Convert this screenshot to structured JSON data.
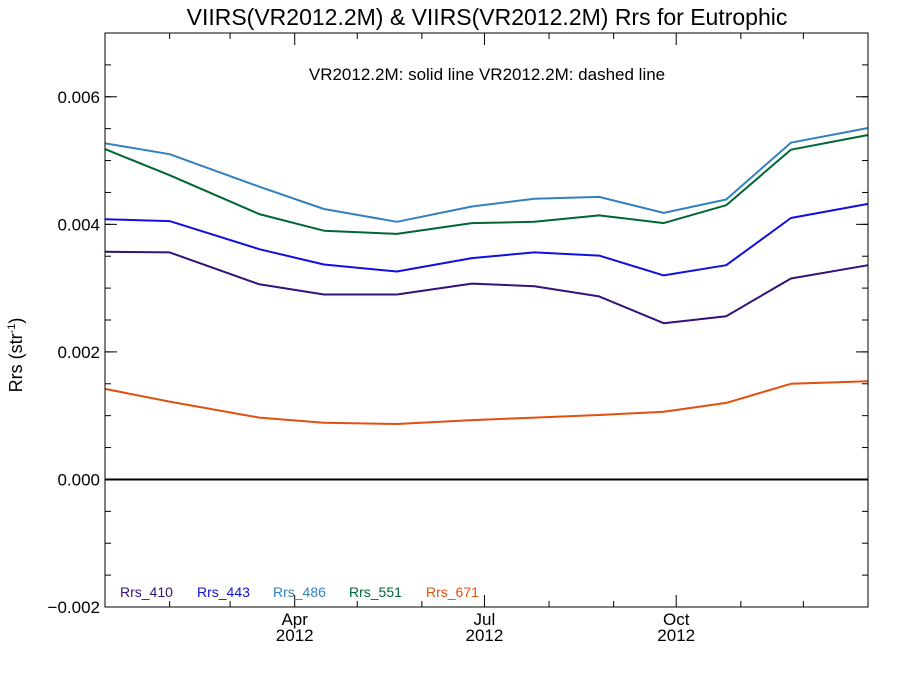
{
  "chart_data": {
    "type": "line",
    "title": "VIIRS(VR2012.2M) & VIIRS(VR2012.2M)  Rrs for Eutrophic",
    "annotation": "VR2012.2M: solid line   VR2012.2M: dashed line",
    "ylabel": {
      "main": "Rrs (str",
      "sup": "-1",
      "close": ")"
    },
    "xlabel": "",
    "ylim": [
      -0.002,
      0.007
    ],
    "yticks": [
      {
        "value": -0.002,
        "label": "−0.002"
      },
      {
        "value": 0.0,
        "label": "0.000"
      },
      {
        "value": 0.002,
        "label": "0.002"
      },
      {
        "value": 0.004,
        "label": "0.004"
      },
      {
        "value": 0.006,
        "label": "0.006"
      }
    ],
    "yminor_step": 0.0005,
    "xlim": [
      "2012-01-01",
      "2013-01-01"
    ],
    "xticks": [
      {
        "date": "2012-04-01",
        "month": "Apr",
        "year": "2012"
      },
      {
        "date": "2012-07-01",
        "month": "Jul",
        "year": "2012"
      },
      {
        "date": "2012-10-01",
        "month": "Oct",
        "year": "2012"
      }
    ],
    "xminor_dates": [
      "2012-02-01",
      "2012-03-01",
      "2012-05-01",
      "2012-06-01",
      "2012-08-01",
      "2012-09-01",
      "2012-11-01",
      "2012-12-01"
    ],
    "zero_line": 0.0,
    "x": [
      "2012-01-01",
      "2012-02-01",
      "2012-03-15",
      "2012-04-15",
      "2012-05-20",
      "2012-06-25",
      "2012-07-25",
      "2012-08-25",
      "2012-09-25",
      "2012-10-25",
      "2012-11-25",
      "2013-01-01"
    ],
    "series": [
      {
        "name": "Rrs_410",
        "color": "#33117a",
        "values": [
          0.00357,
          0.00356,
          0.00306,
          0.0029,
          0.0029,
          0.00307,
          0.00303,
          0.00287,
          0.00245,
          0.00256,
          0.00315,
          0.00336
        ]
      },
      {
        "name": "Rrs_443",
        "color": "#1010e0",
        "values": [
          0.00408,
          0.00405,
          0.00361,
          0.00337,
          0.00326,
          0.00347,
          0.00356,
          0.00351,
          0.0032,
          0.00336,
          0.0041,
          0.00432
        ]
      },
      {
        "name": "Rrs_486",
        "color": "#3280c0",
        "values": [
          0.00527,
          0.0051,
          0.00459,
          0.00424,
          0.00404,
          0.00428,
          0.0044,
          0.00443,
          0.00418,
          0.00439,
          0.00528,
          0.00551
        ]
      },
      {
        "name": "Rrs_551",
        "color": "#006633",
        "values": [
          0.00518,
          0.00477,
          0.00416,
          0.0039,
          0.00385,
          0.00402,
          0.00404,
          0.00414,
          0.00402,
          0.0043,
          0.00517,
          0.0054
        ]
      },
      {
        "name": "Rrs_671",
        "color": "#e0500e",
        "values": [
          0.00142,
          0.00122,
          0.00097,
          0.00089,
          0.00087,
          0.00093,
          0.00097,
          0.00101,
          0.00106,
          0.0012,
          0.0015,
          0.00154
        ]
      }
    ],
    "legend_position": "bottom-left inside",
    "grid": false
  }
}
